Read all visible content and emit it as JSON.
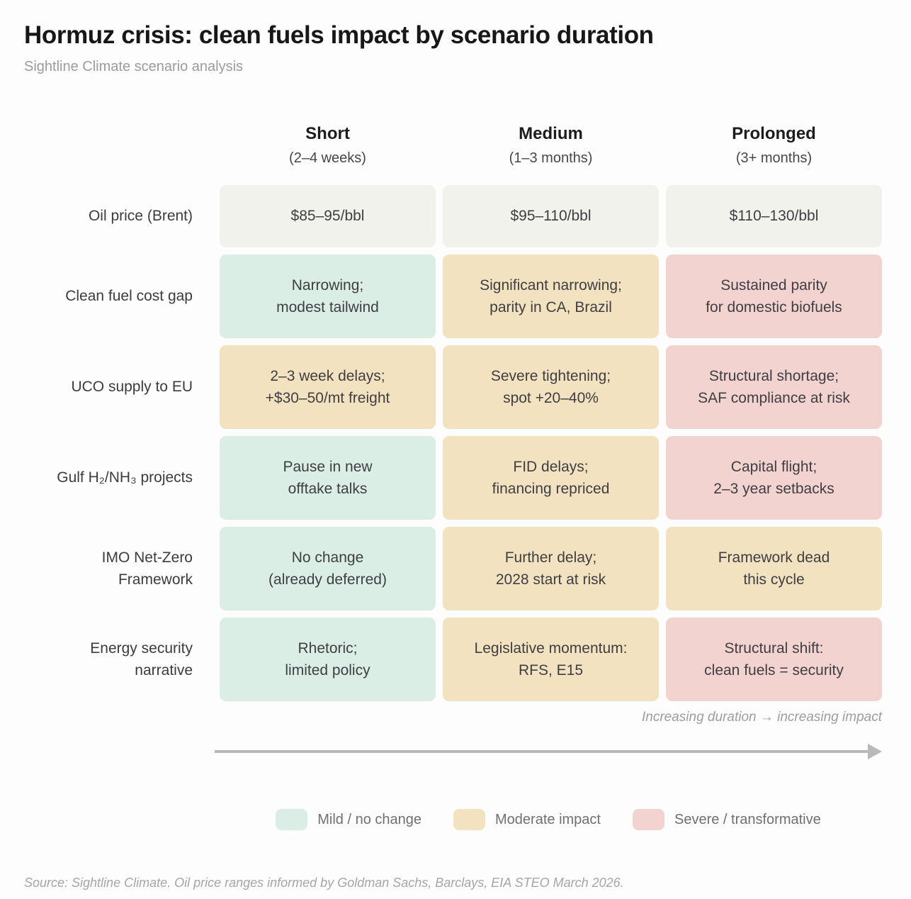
{
  "chart_data": {
    "type": "heatmap",
    "title": "Hormuz crisis: clean fuels impact by scenario duration",
    "subtitle": "Sightline Climate scenario analysis",
    "columns": [
      {
        "label": "Short",
        "sublabel": "(2–4 weeks)"
      },
      {
        "label": "Medium",
        "sublabel": "(1–3 months)"
      },
      {
        "label": "Prolonged",
        "sublabel": "(3+ months)"
      }
    ],
    "rows": [
      {
        "label": "Oil price (Brent)",
        "cells": [
          {
            "text": "$85–95/bbl",
            "impact": "neutral"
          },
          {
            "text": "$95–110/bbl",
            "impact": "neutral"
          },
          {
            "text": "$110–130/bbl",
            "impact": "neutral"
          }
        ]
      },
      {
        "label": "Clean fuel cost gap",
        "cells": [
          {
            "text": "Narrowing;\nmodest tailwind",
            "impact": "mild"
          },
          {
            "text": "Significant narrowing;\nparity in CA, Brazil",
            "impact": "moderate"
          },
          {
            "text": "Sustained parity\nfor domestic biofuels",
            "impact": "severe"
          }
        ]
      },
      {
        "label": "UCO supply to EU",
        "cells": [
          {
            "text": "2–3 week delays;\n+$30–50/mt freight",
            "impact": "moderate"
          },
          {
            "text": "Severe tightening;\nspot +20–40%",
            "impact": "moderate"
          },
          {
            "text": "Structural shortage;\nSAF compliance at risk",
            "impact": "severe"
          }
        ]
      },
      {
        "label": "Gulf H₂/NH₃ projects",
        "cells": [
          {
            "text": "Pause in new\nofftake talks",
            "impact": "mild"
          },
          {
            "text": "FID delays;\nfinancing repriced",
            "impact": "moderate"
          },
          {
            "text": "Capital flight;\n2–3 year setbacks",
            "impact": "severe"
          }
        ]
      },
      {
        "label": "IMO Net-Zero\nFramework",
        "cells": [
          {
            "text": "No change\n(already deferred)",
            "impact": "mild"
          },
          {
            "text": "Further delay;\n2028 start at risk",
            "impact": "moderate"
          },
          {
            "text": "Framework dead\nthis cycle",
            "impact": "moderate"
          }
        ]
      },
      {
        "label": "Energy security\nnarrative",
        "cells": [
          {
            "text": "Rhetoric;\nlimited policy",
            "impact": "mild"
          },
          {
            "text": "Legislative momentum:\nRFS, E15",
            "impact": "moderate"
          },
          {
            "text": "Structural shift:\nclean fuels = security",
            "impact": "severe"
          }
        ]
      }
    ],
    "annotation": "Increasing duration → increasing impact",
    "legend": [
      {
        "label": "Mild / no change",
        "impact": "mild"
      },
      {
        "label": "Moderate impact",
        "impact": "moderate"
      },
      {
        "label": "Severe / transformative",
        "impact": "severe"
      }
    ],
    "source": "Source: Sightline Climate. Oil price ranges informed by Goldman Sachs, Barclays, EIA STEO March 2026.",
    "impact_colors": {
      "neutral": "#f1f2ec",
      "mild": "#dbeee5",
      "moderate": "#f3e2c0",
      "severe": "#f2d3d0"
    }
  }
}
